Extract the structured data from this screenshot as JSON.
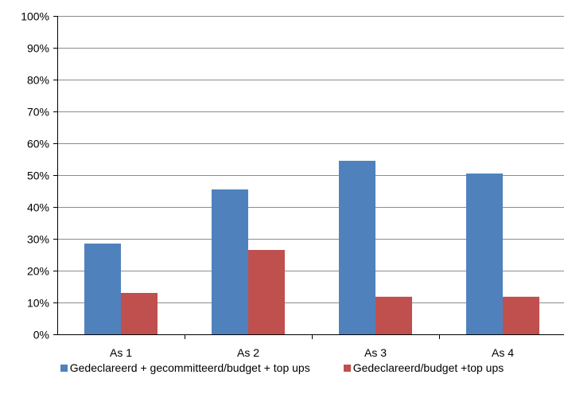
{
  "chart_data": {
    "type": "bar",
    "categories": [
      "As 1",
      "As 2",
      "As 3",
      "As 4"
    ],
    "series": [
      {
        "name": "Gedeclareerd + gecommitteerd/budget + top ups",
        "values": [
          28.5,
          45.5,
          54.5,
          50.5
        ],
        "color": "#4F81BD"
      },
      {
        "name": "Gedeclareerd/budget +top ups",
        "values": [
          13,
          26.5,
          11.8,
          11.8
        ],
        "color": "#C0504D"
      }
    ],
    "yticks": [
      0,
      10,
      20,
      30,
      40,
      50,
      60,
      70,
      80,
      90,
      100
    ],
    "ytick_labels": [
      "0%",
      "10%",
      "20%",
      "30%",
      "40%",
      "50%",
      "60%",
      "70%",
      "80%",
      "90%",
      "100%"
    ],
    "ylim": [
      0,
      100
    ],
    "grid": true,
    "legend_position": "bottom",
    "gridline_color": "#8C8C8C",
    "axis_color": "#000000"
  }
}
